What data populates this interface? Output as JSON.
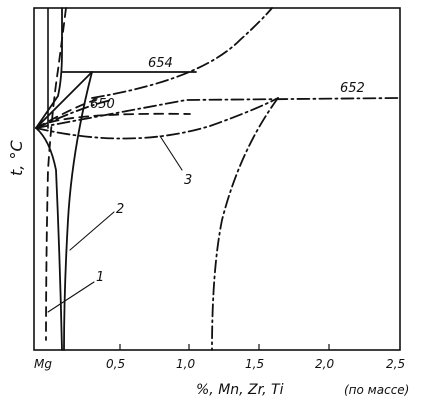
{
  "axes": {
    "x_label_main": "%,  Mn, Zr, Ti",
    "x_label_note": "(по массе)",
    "y_label": "t, °C",
    "x_ticks": [
      "Mg",
      "0,5",
      "1,0",
      "1,5",
      "2,0",
      "2,5"
    ]
  },
  "temperatures": {
    "t654": "654",
    "t652": "652",
    "t650": "650"
  },
  "curve_labels": {
    "c1": "1",
    "c2": "2",
    "c3": "3"
  }
}
